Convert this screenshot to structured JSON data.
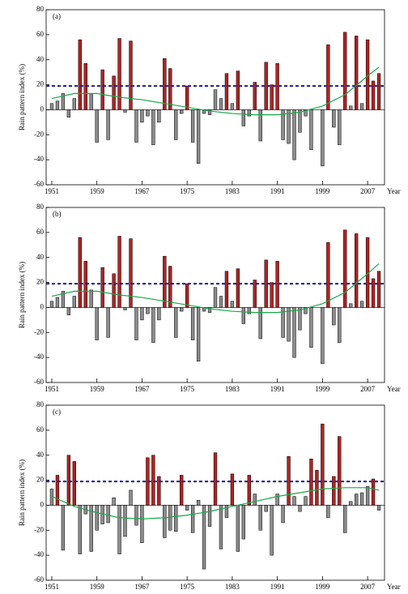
{
  "chart_data": [
    {
      "type": "bar",
      "label": "(a)",
      "y_label": "Rain pattern index (%)",
      "x_label": "Year",
      "x": [
        1951,
        1952,
        1953,
        1954,
        1955,
        1956,
        1957,
        1958,
        1959,
        1960,
        1961,
        1962,
        1963,
        1964,
        1965,
        1966,
        1967,
        1968,
        1969,
        1970,
        1971,
        1972,
        1973,
        1974,
        1975,
        1976,
        1977,
        1978,
        1979,
        1980,
        1981,
        1982,
        1983,
        1984,
        1985,
        1986,
        1987,
        1988,
        1989,
        1990,
        1991,
        1992,
        1993,
        1994,
        1995,
        1996,
        1997,
        1998,
        1999,
        2000,
        2001,
        2002,
        2003,
        2004,
        2005,
        2006,
        2007,
        2008,
        2009
      ],
      "values": [
        5,
        7,
        13,
        -6,
        9,
        56,
        37,
        13,
        -26,
        32,
        -24,
        27,
        57,
        -2,
        55,
        -26,
        -10,
        -5,
        -28,
        -10,
        41,
        33,
        -24,
        -3,
        19,
        -26,
        -43,
        -3,
        -4,
        16,
        9,
        29,
        5,
        31,
        -13,
        -5,
        22,
        -25,
        38,
        20,
        37,
        -24,
        -27,
        -40,
        -18,
        -5,
        -32,
        0,
        -45,
        52,
        -14,
        -28,
        62,
        3,
        59,
        5,
        56,
        23,
        29
      ],
      "threshold": 19,
      "above_color": "#b22222",
      "below_color": "#8c8c8c",
      "threshold_color": "#1a1a8c",
      "trend": {
        "color": "#1aa84a",
        "x": [
          1951,
          1955,
          1959,
          1963,
          1967,
          1971,
          1975,
          1979,
          1983,
          1987,
          1991,
          1995,
          1999,
          2003,
          2007,
          2009
        ],
        "values": [
          9,
          13,
          13,
          10,
          8,
          5,
          2,
          -1,
          -3,
          -4,
          -4,
          -2,
          3,
          12,
          27,
          34
        ]
      },
      "xlim": [
        1950,
        2010
      ],
      "xticks": [
        1951,
        1959,
        1967,
        1975,
        1983,
        1991,
        1999,
        2007
      ],
      "ylim": [
        -60,
        80
      ],
      "yticks": [
        -60,
        -40,
        -20,
        0,
        20,
        40,
        60,
        80
      ]
    },
    {
      "type": "bar",
      "label": "(b)",
      "y_label": "Rain pattern index (%)",
      "x_label": "Year",
      "x": [
        1951,
        1952,
        1953,
        1954,
        1955,
        1956,
        1957,
        1958,
        1959,
        1960,
        1961,
        1962,
        1963,
        1964,
        1965,
        1966,
        1967,
        1968,
        1969,
        1970,
        1971,
        1972,
        1973,
        1974,
        1975,
        1976,
        1977,
        1978,
        1979,
        1980,
        1981,
        1982,
        1983,
        1984,
        1985,
        1986,
        1987,
        1988,
        1989,
        1990,
        1991,
        1992,
        1993,
        1994,
        1995,
        1996,
        1997,
        1998,
        1999,
        2000,
        2001,
        2002,
        2003,
        2004,
        2005,
        2006,
        2007,
        2008,
        2009
      ],
      "values": [
        5,
        8,
        13,
        -6,
        9,
        56,
        37,
        14,
        -26,
        32,
        -24,
        27,
        57,
        -2,
        55,
        -26,
        -10,
        -5,
        -28,
        -10,
        41,
        33,
        -24,
        -3,
        19,
        -26,
        -43,
        -3,
        -4,
        16,
        9,
        29,
        5,
        31,
        -13,
        -5,
        22,
        -25,
        38,
        20,
        37,
        -24,
        -27,
        -40,
        -18,
        -5,
        -32,
        0,
        -45,
        52,
        -14,
        -28,
        62,
        3,
        59,
        5,
        56,
        23,
        29
      ],
      "threshold": 19,
      "above_color": "#b22222",
      "below_color": "#8c8c8c",
      "threshold_color": "#1a1a8c",
      "trend": {
        "color": "#1aa84a",
        "x": [
          1951,
          1955,
          1959,
          1963,
          1967,
          1971,
          1975,
          1979,
          1983,
          1987,
          1991,
          1995,
          1999,
          2003,
          2007,
          2009
        ],
        "values": [
          9,
          13,
          13,
          10,
          8,
          5,
          2,
          -1,
          -3,
          -4,
          -4,
          -2,
          3,
          12,
          27,
          35
        ]
      },
      "xlim": [
        1950,
        2010
      ],
      "xticks": [
        1951,
        1959,
        1967,
        1975,
        1983,
        1991,
        1999,
        2007
      ],
      "ylim": [
        -60,
        80
      ],
      "yticks": [
        -60,
        -40,
        -20,
        0,
        20,
        40,
        60,
        80
      ]
    },
    {
      "type": "bar",
      "label": "(c)",
      "y_label": "Rain pattern index (%)",
      "x_label": "Year",
      "x": [
        1951,
        1952,
        1953,
        1954,
        1955,
        1956,
        1957,
        1958,
        1959,
        1960,
        1961,
        1962,
        1963,
        1964,
        1965,
        1966,
        1967,
        1968,
        1969,
        1970,
        1971,
        1972,
        1973,
        1974,
        1975,
        1976,
        1977,
        1978,
        1979,
        1980,
        1981,
        1982,
        1983,
        1984,
        1985,
        1986,
        1987,
        1988,
        1989,
        1990,
        1991,
        1992,
        1993,
        1994,
        1995,
        1996,
        1997,
        1998,
        1999,
        2000,
        2001,
        2002,
        2003,
        2004,
        2005,
        2006,
        2007,
        2008,
        2009
      ],
      "values": [
        13,
        24,
        -36,
        40,
        35,
        -39,
        -7,
        -37,
        -20,
        -15,
        -14,
        6,
        -39,
        -25,
        12,
        -16,
        -30,
        38,
        40,
        23,
        -26,
        -20,
        -21,
        24,
        -4,
        -22,
        4,
        -51,
        -17,
        42,
        -35,
        -10,
        25,
        -37,
        -27,
        24,
        9,
        -20,
        -5,
        -40,
        9,
        -14,
        39,
        7,
        -5,
        7,
        37,
        28,
        65,
        -10,
        23,
        55,
        -22,
        3,
        9,
        10,
        15,
        21,
        -4
      ],
      "threshold": 19,
      "above_color": "#b22222",
      "below_color": "#8c8c8c",
      "threshold_color": "#1a1a8c",
      "trend": {
        "color": "#1aa84a",
        "x": [
          1951,
          1955,
          1959,
          1963,
          1967,
          1971,
          1975,
          1979,
          1983,
          1987,
          1991,
          1995,
          1999,
          2003,
          2007,
          2009
        ],
        "values": [
          7,
          -1,
          -6,
          -10,
          -11,
          -10,
          -8,
          -5,
          -1,
          3,
          7,
          10,
          13,
          14,
          14,
          12
        ]
      },
      "xlim": [
        1950,
        2010
      ],
      "xticks": [
        1951,
        1959,
        1967,
        1975,
        1983,
        1991,
        1999,
        2007
      ],
      "ylim": [
        -60,
        80
      ],
      "yticks": [
        -60,
        -40,
        -20,
        0,
        20,
        40,
        60,
        80
      ]
    }
  ]
}
